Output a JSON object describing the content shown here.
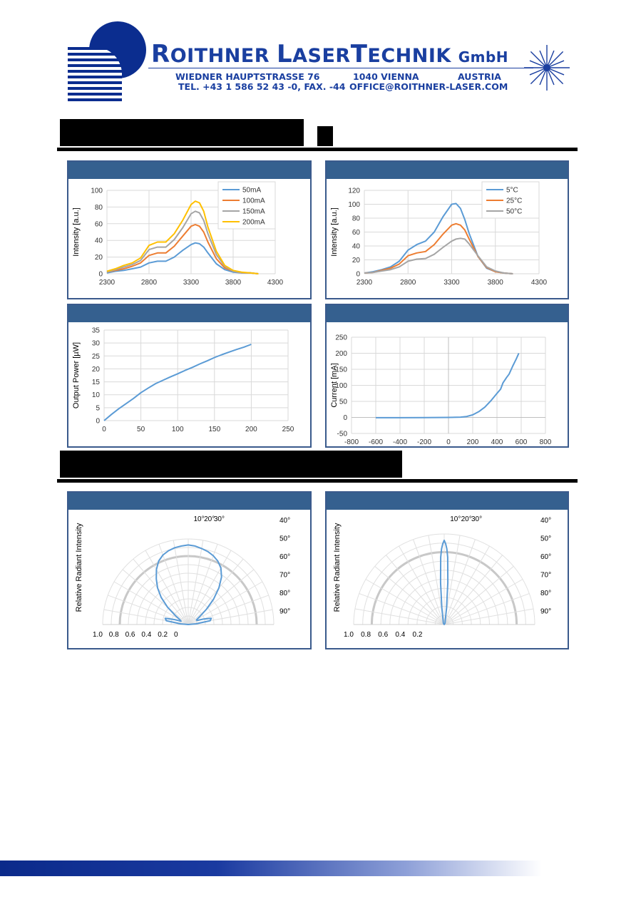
{
  "header": {
    "company_first": "R",
    "company_rest1": "OITHNER ",
    "company_l": "L",
    "company_rest2": "ASER",
    "company_t": "T",
    "company_rest3": "ECHNIK",
    "company_suffix": "GmbH",
    "street": "WIEDNER HAUPTSTRASSE 76",
    "city": "1040 VIENNA",
    "country": "AUSTRIA",
    "phone": "TEL. +43 1 586 52 43 -0, FAX. -44",
    "email": "OFFICE@ROITHNER-LASER.COM"
  },
  "colors": {
    "brand": "#1a3fa0",
    "panel_header": "#35608f",
    "series_blue": "#5b9bd5",
    "series_orange": "#ed7d31",
    "series_gray": "#a5a5a5",
    "series_yellow": "#ffc000"
  },
  "chart_data": [
    {
      "type": "line",
      "ylabel": "Intensity [a.u.]",
      "xlim": [
        2300,
        4300
      ],
      "ylim": [
        0,
        100
      ],
      "xticks": [
        "2300",
        "2800",
        "3300",
        "3800",
        "4300"
      ],
      "yticks": [
        "0",
        "20",
        "40",
        "60",
        "80",
        "100"
      ],
      "legend": "top-right",
      "series": [
        {
          "name": "50mA",
          "color": "#5b9bd5",
          "x": [
            2300,
            2400,
            2500,
            2600,
            2700,
            2800,
            2900,
            3000,
            3100,
            3200,
            3300,
            3350,
            3400,
            3450,
            3500,
            3600,
            3700,
            3800,
            3900,
            4000,
            4100
          ],
          "y": [
            1,
            3,
            4,
            6,
            8,
            13,
            15,
            15,
            20,
            28,
            35,
            37,
            36,
            32,
            25,
            12,
            5,
            2,
            1,
            1,
            0
          ]
        },
        {
          "name": "100mA",
          "color": "#ed7d31",
          "x": [
            2300,
            2400,
            2500,
            2600,
            2700,
            2800,
            2900,
            3000,
            3100,
            3200,
            3300,
            3350,
            3400,
            3450,
            3500,
            3600,
            3700,
            3800,
            3900,
            4000,
            4100
          ],
          "y": [
            2,
            4,
            6,
            9,
            13,
            22,
            25,
            25,
            33,
            45,
            57,
            59,
            57,
            50,
            38,
            18,
            7,
            3,
            1,
            1,
            0
          ]
        },
        {
          "name": "150mA",
          "color": "#a5a5a5",
          "x": [
            2300,
            2400,
            2500,
            2600,
            2700,
            2800,
            2900,
            3000,
            3100,
            3200,
            3300,
            3350,
            3400,
            3450,
            3500,
            3600,
            3700,
            3800,
            3900,
            4000,
            4100
          ],
          "y": [
            2,
            5,
            8,
            11,
            16,
            29,
            32,
            32,
            41,
            55,
            72,
            75,
            73,
            64,
            48,
            23,
            9,
            3,
            1,
            1,
            0
          ]
        },
        {
          "name": "200mA",
          "color": "#ffc000",
          "x": [
            2300,
            2400,
            2500,
            2600,
            2700,
            2800,
            2900,
            3000,
            3100,
            3200,
            3300,
            3350,
            3400,
            3450,
            3500,
            3600,
            3700,
            3800,
            3900,
            4000,
            4100
          ],
          "y": [
            3,
            6,
            10,
            13,
            19,
            34,
            38,
            38,
            48,
            64,
            83,
            87,
            85,
            75,
            56,
            27,
            10,
            4,
            2,
            1,
            0
          ]
        }
      ]
    },
    {
      "type": "line",
      "ylabel": "Intensity [a.u.]",
      "xlim": [
        2300,
        4300
      ],
      "ylim": [
        0,
        120
      ],
      "xticks": [
        "2300",
        "2800",
        "3300",
        "3800",
        "4300"
      ],
      "yticks": [
        "0",
        "20",
        "40",
        "60",
        "80",
        "100",
        "120"
      ],
      "legend": "top-right",
      "series": [
        {
          "name": "5°C",
          "color": "#5b9bd5",
          "x": [
            2300,
            2400,
            2500,
            2600,
            2700,
            2800,
            2900,
            3000,
            3100,
            3200,
            3300,
            3350,
            3400,
            3450,
            3500,
            3600,
            3700,
            3800,
            3900,
            4000
          ],
          "y": [
            1,
            3,
            6,
            10,
            18,
            34,
            42,
            47,
            60,
            82,
            100,
            101,
            94,
            78,
            58,
            25,
            8,
            3,
            1,
            0
          ]
        },
        {
          "name": "25°C",
          "color": "#ed7d31",
          "x": [
            2300,
            2400,
            2500,
            2600,
            2700,
            2800,
            2900,
            3000,
            3100,
            3200,
            3300,
            3350,
            3400,
            3450,
            3500,
            3600,
            3700,
            3800,
            3900,
            4000
          ],
          "y": [
            1,
            2,
            5,
            8,
            14,
            26,
            30,
            32,
            42,
            57,
            70,
            72,
            70,
            63,
            50,
            25,
            9,
            3,
            1,
            0
          ]
        },
        {
          "name": "50°C",
          "color": "#a5a5a5",
          "x": [
            2300,
            2400,
            2500,
            2600,
            2700,
            2800,
            2900,
            3000,
            3100,
            3200,
            3300,
            3350,
            3400,
            3450,
            3500,
            3600,
            3700,
            3800,
            3900,
            4000
          ],
          "y": [
            1,
            2,
            4,
            6,
            10,
            18,
            21,
            22,
            28,
            38,
            47,
            50,
            51,
            50,
            43,
            26,
            10,
            4,
            1,
            0
          ]
        }
      ]
    },
    {
      "type": "line",
      "ylabel": "Output Power [µW]",
      "xlim": [
        0,
        250
      ],
      "ylim": [
        0,
        35
      ],
      "xticks": [
        "0",
        "50",
        "100",
        "150",
        "200",
        "250"
      ],
      "yticks": [
        "0",
        "5",
        "10",
        "15",
        "20",
        "25",
        "30",
        "35"
      ],
      "series": [
        {
          "color": "#5b9bd5",
          "x": [
            0,
            10,
            20,
            30,
            40,
            50,
            60,
            70,
            80,
            90,
            100,
            110,
            120,
            130,
            140,
            150,
            160,
            170,
            180,
            190,
            200
          ],
          "y": [
            0,
            2.4,
            4.6,
            6.6,
            8.6,
            10.8,
            12.6,
            14.3,
            15.6,
            16.9,
            18.1,
            19.4,
            20.6,
            21.9,
            23.1,
            24.4,
            25.5,
            26.5,
            27.5,
            28.4,
            29.5
          ]
        }
      ]
    },
    {
      "type": "line",
      "ylabel": "Current [mA]",
      "xlim": [
        -800,
        800
      ],
      "ylim": [
        -50,
        250
      ],
      "xticks": [
        "-800",
        "-600",
        "-400",
        "-200",
        "0",
        "200",
        "400",
        "600",
        "800"
      ],
      "yticks": [
        "-50",
        "0",
        "50",
        "100",
        "150",
        "200",
        "250"
      ],
      "series": [
        {
          "color": "#5b9bd5",
          "x": [
            -600,
            -400,
            -200,
            0,
            100,
            150,
            200,
            250,
            300,
            350,
            400,
            430,
            450,
            480,
            500,
            530,
            560,
            580
          ],
          "y": [
            -1,
            -1,
            -0.5,
            0,
            1,
            3,
            8,
            18,
            32,
            52,
            75,
            88,
            108,
            125,
            135,
            160,
            183,
            200
          ]
        }
      ]
    },
    {
      "type": "polar",
      "ylabel": "Relative Radiant Intensity",
      "angle_labels": [
        "10°",
        "20°",
        "30°",
        "40°",
        "50°",
        "60°",
        "70°",
        "80°",
        "90°"
      ],
      "radial_labels": [
        "1.0",
        "0.8",
        "0.6",
        "0.4",
        "0.2",
        "0"
      ],
      "series": [
        {
          "color": "#5b9bd5",
          "angle_deg": [
            -90,
            -85,
            -80,
            -75,
            -70,
            -65,
            -60,
            -55,
            -50,
            -45,
            -40,
            -35,
            -30,
            -25,
            -20,
            -15,
            -10,
            -5,
            0,
            5,
            10,
            15,
            20,
            25,
            30,
            35,
            40,
            45,
            50,
            55,
            60,
            65,
            70,
            75,
            80,
            85,
            90
          ],
          "r": [
            0,
            0.1,
            0.28,
            0.3,
            0.18,
            0.1,
            0.12,
            0.2,
            0.34,
            0.48,
            0.6,
            0.7,
            0.8,
            0.88,
            0.93,
            0.96,
            0.98,
            0.99,
            1.0,
            0.99,
            0.97,
            0.95,
            0.92,
            0.88,
            0.82,
            0.73,
            0.6,
            0.45,
            0.3,
            0.18,
            0.12,
            0.12,
            0.2,
            0.3,
            0.28,
            0.1,
            0
          ]
        }
      ]
    },
    {
      "type": "polar",
      "ylabel": "Relative Radiant Intensity",
      "angle_labels": [
        "10°",
        "20°",
        "30°",
        "40°",
        "50°",
        "60°",
        "70°",
        "80°",
        "90°"
      ],
      "radial_labels": [
        "1.0",
        "0.8",
        "0.6",
        "0.4",
        "0.2"
      ],
      "series": [
        {
          "color": "#5b9bd5",
          "angle_deg": [
            -90,
            -30,
            -15,
            -8,
            -5,
            -3,
            -2,
            -1,
            0,
            1,
            2,
            3,
            5,
            8,
            15,
            30,
            90
          ],
          "r": [
            0,
            0.02,
            0.05,
            0.2,
            0.5,
            0.8,
            0.9,
            0.96,
            1.0,
            0.96,
            0.9,
            0.8,
            0.5,
            0.2,
            0.05,
            0.02,
            0
          ]
        }
      ]
    }
  ]
}
